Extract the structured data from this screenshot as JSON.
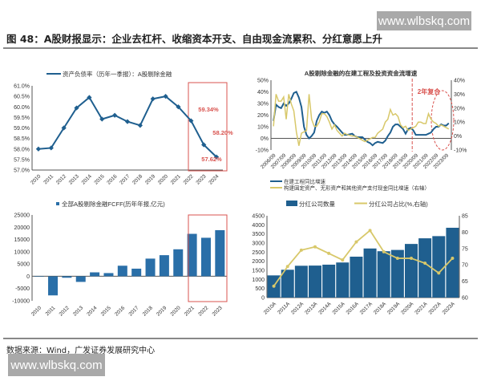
{
  "watermark": "www.wlbskq.com",
  "title": "图 48：A股财报显示：企业去杠杆、收缩资本开支、自由现金流累积、分红意愿上升",
  "source": "数据来源：Wind，广发证券发展研究中心",
  "colors": {
    "blue": "#1f5f8f",
    "lightblue": "#2a6fa8",
    "yellow": "#d8c86a",
    "red": "#d9534f"
  },
  "chart_data": [
    {
      "type": "line",
      "title": "",
      "legend": [
        "资产负债率（历年一季报）：A股剔除金融"
      ],
      "categories": [
        "2010",
        "2011",
        "2012",
        "2013",
        "2014",
        "2015",
        "2016",
        "2017",
        "2018",
        "2019",
        "2020",
        "2021",
        "2022",
        "2023",
        "2024"
      ],
      "values": [
        58.0,
        58.05,
        59.0,
        59.95,
        60.45,
        59.42,
        59.6,
        59.3,
        59.12,
        60.38,
        60.5,
        60.0,
        59.34,
        58.2,
        57.62
      ],
      "ylim": [
        57.0,
        61.0
      ],
      "yticks": [
        "57.0%",
        "57.5%",
        "58.0%",
        "58.5%",
        "59.0%",
        "59.5%",
        "60.0%",
        "60.5%",
        "61.0%"
      ],
      "annotations": [
        "59.34%",
        "58.20%",
        "57.62%"
      ],
      "highlight": [
        "2022",
        "2024"
      ]
    },
    {
      "type": "line",
      "title": "A股剔除金融的在建工程及投资资金流增速",
      "legend": [
        "在建工程同比增速",
        "构建固定资产、无形资产和其他资产支付现金同比增速（右轴）"
      ],
      "xticks": [
        "2006/09",
        "2007/09",
        "2008/09",
        "2009/09",
        "2010/09",
        "2011/09",
        "2012/09",
        "2013/09",
        "2014/09",
        "2015/09",
        "2016/09",
        "2017/09",
        "2018/09",
        "2019/09",
        "2020/09",
        "2021/09",
        "2022/09",
        "2023/09"
      ],
      "yticks_left": [
        "-10%",
        "0%",
        "10%",
        "20%",
        "30%",
        "40%",
        "50%"
      ],
      "ylim_left": [
        -10,
        50
      ],
      "yticks_right": [
        "-10%",
        "0%",
        "10%",
        "20%",
        "30%",
        "40%"
      ],
      "ylim_right": [
        -10,
        40
      ],
      "annotation": "2年复合",
      "series": [
        {
          "name": "在建工程同比增速",
          "axis": "left",
          "x": [
            2006.75,
            2007.0,
            2007.25,
            2007.5,
            2007.75,
            2008.0,
            2008.25,
            2008.5,
            2008.75,
            2009.0,
            2009.25,
            2009.5,
            2009.75,
            2010.0,
            2010.25,
            2010.5,
            2010.75,
            2011.0,
            2011.25,
            2011.5,
            2011.75,
            2012.0,
            2012.25,
            2012.5,
            2012.75,
            2013.0,
            2013.5,
            2013.75,
            2014.0,
            2014.5,
            2014.75,
            2015.0,
            2015.5,
            2015.75,
            2016.0,
            2016.25,
            2016.5,
            2016.75,
            2017.0,
            2017.5,
            2017.75,
            2018.0,
            2018.25,
            2018.5,
            2018.75,
            2019.0,
            2019.25,
            2019.5,
            2019.75,
            2020.0,
            2020.25,
            2020.5,
            2020.75,
            2021.0,
            2021.25,
            2021.5,
            2021.75,
            2022.0,
            2022.25,
            2022.5,
            2022.75,
            2023.0,
            2023.25,
            2023.5,
            2023.75,
            2024.0
          ],
          "values": [
            15,
            29,
            27,
            26,
            30,
            28,
            30,
            34,
            39,
            40,
            35,
            27,
            10,
            3,
            0,
            2,
            5,
            15,
            20,
            23,
            22,
            23,
            20,
            15,
            12,
            10,
            5,
            3,
            3,
            4,
            2,
            1,
            1,
            -1,
            -3,
            -4,
            -6,
            -4,
            -3,
            -4,
            -2,
            2,
            5,
            10,
            12,
            12,
            10,
            8,
            4,
            8,
            9,
            7,
            3,
            3,
            3,
            3,
            3,
            4,
            5,
            8,
            10,
            10,
            12,
            11,
            11,
            13
          ]
        },
        {
          "name": "构建固定资产、无形资产和其他资产支付现金同比增速（右轴）",
          "axis": "right",
          "x": [
            2006.75,
            2007.0,
            2007.25,
            2007.5,
            2007.75,
            2008.0,
            2008.25,
            2008.5,
            2008.75,
            2009.0,
            2009.25,
            2009.5,
            2009.75,
            2010.0,
            2010.25,
            2010.5,
            2010.75,
            2011.0,
            2011.25,
            2011.5,
            2011.75,
            2012.0,
            2012.25,
            2012.5,
            2012.75,
            2013.0,
            2013.5,
            2013.75,
            2014.0,
            2014.5,
            2014.75,
            2015.0,
            2015.5,
            2015.75,
            2016.0,
            2016.25,
            2016.5,
            2016.75,
            2017.0,
            2017.5,
            2017.75,
            2018.0,
            2018.25,
            2018.5,
            2018.75,
            2019.0,
            2019.25,
            2019.5,
            2019.75,
            2020.0,
            2020.25,
            2020.5,
            2020.75,
            2021.0,
            2021.25,
            2021.5,
            2021.75,
            2022.0,
            2022.25,
            2022.5,
            2022.75,
            2023.0,
            2023.25,
            2023.5,
            2023.75,
            2024.0
          ],
          "values": [
            7,
            30,
            25,
            25,
            28,
            12,
            30,
            23,
            18,
            3,
            -7,
            2,
            3,
            4,
            30,
            12,
            7,
            7,
            10,
            16,
            16,
            14,
            10,
            5,
            8,
            4,
            0,
            2,
            1,
            0,
            0,
            -1,
            -3,
            -4,
            -3,
            -2,
            -1,
            -1,
            2,
            5,
            10,
            12,
            19,
            15,
            16,
            14,
            8,
            6,
            7,
            4,
            5,
            6,
            7,
            10,
            10,
            9,
            9,
            16,
            12,
            10,
            9,
            7,
            8,
            7,
            6,
            5
          ]
        }
      ]
    },
    {
      "type": "bar",
      "title": "",
      "legend": [
        "全部A股剔除金融FCFF(历年年报,亿元)"
      ],
      "categories": [
        "2010",
        "2011",
        "2012",
        "2013",
        "2014",
        "2015",
        "2016",
        "2017",
        "2018",
        "2019",
        "2020",
        "2021",
        "2022",
        "2023"
      ],
      "values": [
        -200,
        -7800,
        -600,
        -2300,
        1600,
        1300,
        4300,
        3100,
        7200,
        8600,
        11000,
        17300,
        15700,
        18800
      ],
      "ylim": [
        -10000,
        25000
      ],
      "yticks": [
        "-10000",
        "-5000",
        "0",
        "5000",
        "10000",
        "15000",
        "20000",
        "25000"
      ],
      "highlight": [
        "2021",
        "2023"
      ]
    },
    {
      "type": "bar",
      "title": "",
      "legend": [
        "分红公司数量",
        "分红公司占比(%,右轴)"
      ],
      "categories": [
        "2010A",
        "2011A",
        "2012A",
        "2013A",
        "2014A",
        "2015A",
        "2016A",
        "2017A",
        "2018A",
        "2019A",
        "2020A",
        "2021A",
        "2022A",
        "2023A"
      ],
      "series": [
        {
          "name": "分红公司数量",
          "type": "bar",
          "values": [
            1220,
            1530,
            1750,
            1760,
            1810,
            1930,
            2250,
            2700,
            2550,
            2620,
            2950,
            3260,
            3380,
            3840
          ]
        },
        {
          "name": "分红公司占比(%,右轴)",
          "type": "line",
          "values": [
            63.5,
            69.5,
            74.5,
            75.5,
            73.5,
            71.5,
            77,
            80.5,
            74,
            72,
            72,
            70.5,
            67.5,
            72
          ]
        }
      ],
      "ylim_left": [
        0,
        4500
      ],
      "yticks_left": [
        "0",
        "500",
        "1000",
        "1500",
        "2000",
        "2500",
        "3000",
        "3500",
        "4000",
        "4500"
      ],
      "ylim_right": [
        60,
        85
      ],
      "yticks_right": [
        "60",
        "65",
        "70",
        "75",
        "80",
        "85"
      ]
    }
  ]
}
